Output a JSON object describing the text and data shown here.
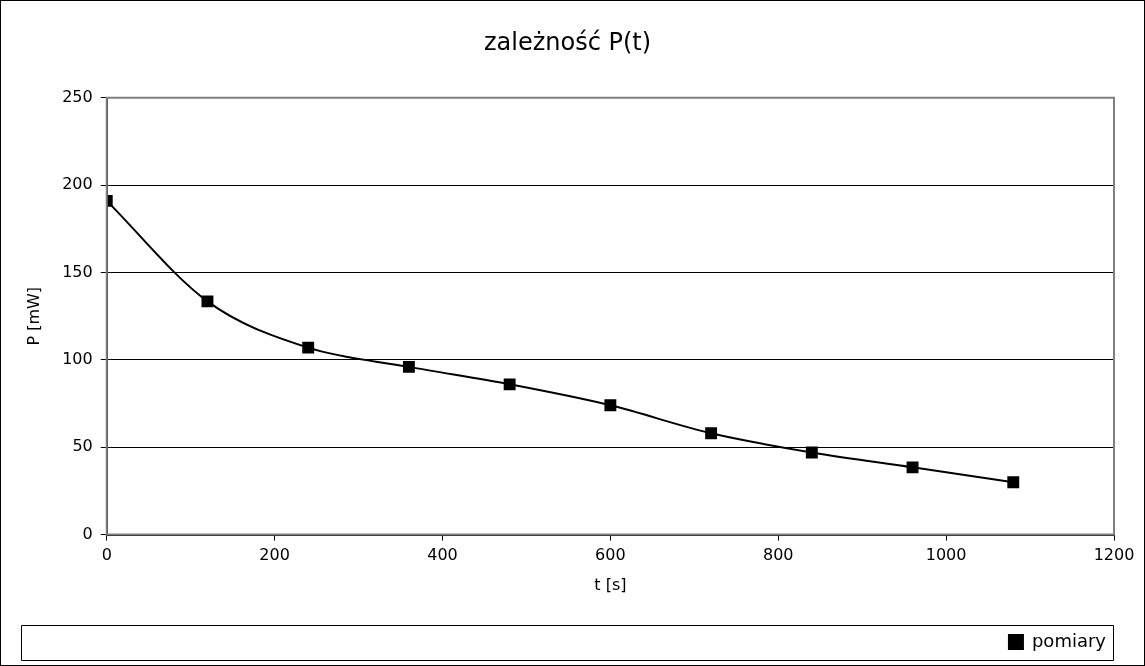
{
  "chart_data": {
    "type": "line",
    "title": "zależność P(t)",
    "xlabel": "t [s]",
    "ylabel": "P [mW]",
    "x": [
      0,
      120,
      240,
      360,
      480,
      600,
      720,
      840,
      960,
      1080
    ],
    "series": [
      {
        "name": "pomiary",
        "color": "#000000",
        "values": [
          191,
          133.5,
          107,
          96,
          86,
          74,
          58,
          47,
          38.5,
          30
        ]
      }
    ],
    "xlim": [
      0,
      1200
    ],
    "xticks": [
      0,
      200,
      400,
      600,
      800,
      1000,
      1200
    ],
    "ylim": [
      0,
      250
    ],
    "yticks": [
      0,
      50,
      100,
      150,
      200,
      250
    ],
    "grid": "y",
    "legend": "bottom right",
    "marker": "square",
    "line_style": "solid"
  }
}
